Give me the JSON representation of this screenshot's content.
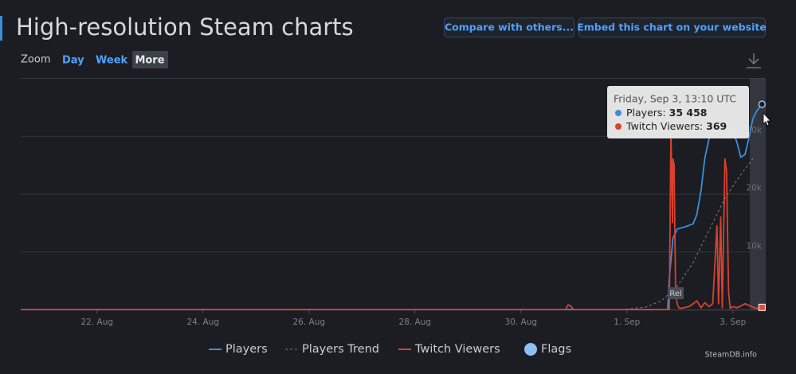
{
  "header": {
    "title": "High-resolution Steam charts"
  },
  "buttons": [
    "Compare with others...",
    "Embed this chart on your website"
  ],
  "zoom": {
    "label": "Zoom",
    "options": [
      "Day",
      "Week",
      "More"
    ]
  },
  "chart_data": {
    "type": "line",
    "xlim": [
      20.56,
      34.62
    ],
    "xticks": [
      {
        "value": 22,
        "label": "22. Aug"
      },
      {
        "value": 24,
        "label": "24. Aug"
      },
      {
        "value": 26,
        "label": "26. Aug"
      },
      {
        "value": 28,
        "label": "28. Aug"
      },
      {
        "value": 30,
        "label": "30. Aug"
      },
      {
        "value": 32,
        "label": "1. Sep"
      },
      {
        "value": 34,
        "label": "3. Sep"
      }
    ],
    "ylim": [
      0,
      40000
    ],
    "yticks": [
      {
        "value": 10000,
        "label": "10k"
      },
      {
        "value": 20000,
        "label": "20k"
      },
      {
        "value": 30000,
        "label": "30k"
      }
    ],
    "grid": true,
    "series": [
      {
        "name": "Players",
        "color": "#3a8fdb",
        "dashed": false,
        "x": [
          20.56,
          32.77,
          32.8,
          32.87,
          32.95,
          33.1,
          33.25,
          33.32,
          33.4,
          33.47,
          33.55,
          33.7,
          33.85,
          34.0,
          34.08,
          34.15,
          34.23,
          34.3,
          34.38,
          34.45,
          34.55
        ],
        "values": [
          0,
          0,
          5400,
          12300,
          13900,
          14300,
          14800,
          16400,
          20600,
          26100,
          29500,
          31600,
          32700,
          30900,
          28800,
          26300,
          26800,
          29500,
          33000,
          34300,
          35458
        ]
      },
      {
        "name": "Players Trend",
        "color": "#7a7e86",
        "dashed": true,
        "x": [
          31.89,
          32.35,
          32.65,
          32.95,
          33.25,
          33.55,
          33.85,
          34.15,
          34.38
        ],
        "values": [
          0,
          400,
          1500,
          4000,
          8100,
          13700,
          19200,
          23300,
          26100
        ]
      },
      {
        "name": "Twitch Viewers",
        "color": "#d9412f",
        "dashed": false,
        "x": [
          20.56,
          30.84,
          30.89,
          30.93,
          30.99,
          32.8,
          32.83,
          32.86,
          32.87,
          32.89,
          32.92,
          32.95,
          32.98,
          33.02,
          33.17,
          33.25,
          33.32,
          33.4,
          33.47,
          33.55,
          33.62,
          33.7,
          33.73,
          33.77,
          33.8,
          33.85,
          33.88,
          33.92,
          33.95,
          34.0,
          34.08,
          34.23,
          34.38,
          34.45,
          34.55
        ],
        "values": [
          0,
          0,
          800,
          700,
          0,
          0,
          31000,
          15000,
          26000,
          25000,
          3000,
          1000,
          300,
          200,
          500,
          1000,
          1500,
          300,
          1200,
          500,
          1000,
          14500,
          1000,
          16000,
          300,
          26000,
          24000,
          3000,
          200,
          500,
          300,
          1000,
          400,
          200,
          369
        ]
      }
    ],
    "flags": {
      "name": "Flags",
      "color": "#8fbff0",
      "items": [
        {
          "x": 32.92,
          "label": "Rel"
        }
      ]
    }
  },
  "tooltip": {
    "title": "Friday, Sep 3, 13:10 UTC",
    "rows": [
      {
        "label": "Players:",
        "value": "35 458"
      },
      {
        "label": "Twitch Viewers:",
        "value": "369"
      }
    ]
  },
  "credit": "SteamDB.info"
}
